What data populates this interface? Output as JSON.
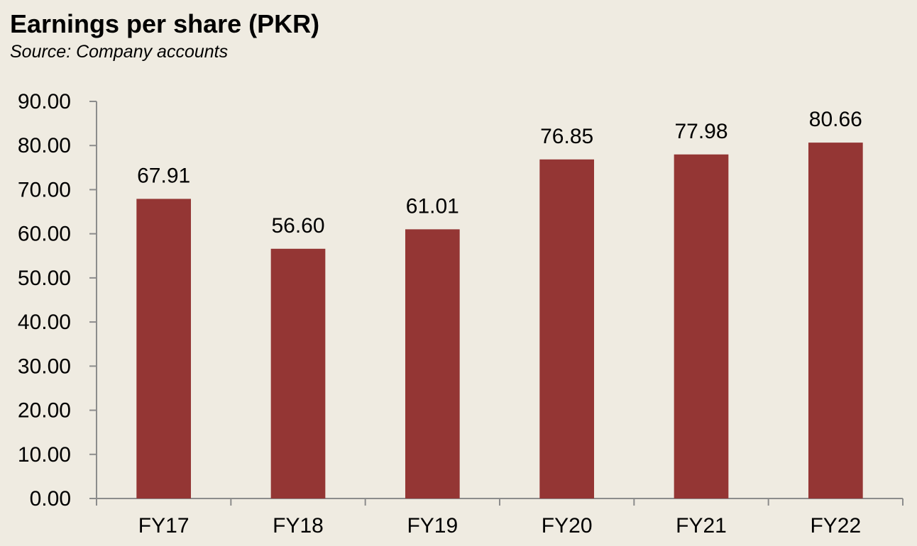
{
  "chart_data": {
    "type": "bar",
    "title": "Earnings per share (PKR)",
    "subtitle": "Source: Company accounts",
    "categories": [
      "FY17",
      "FY18",
      "FY19",
      "FY20",
      "FY21",
      "FY22"
    ],
    "values": [
      67.91,
      56.6,
      61.01,
      76.85,
      77.98,
      80.66
    ],
    "data_labels": [
      "67.91",
      "56.60",
      "61.01",
      "76.85",
      "77.98",
      "80.66"
    ],
    "y_ticks": [
      0,
      10,
      20,
      30,
      40,
      50,
      60,
      70,
      80,
      90
    ],
    "y_tick_labels": [
      "0.00",
      "10.00",
      "20.00",
      "30.00",
      "40.00",
      "50.00",
      "60.00",
      "70.00",
      "80.00",
      "90.00"
    ],
    "xlabel": "",
    "ylabel": "",
    "ylim": [
      0,
      90
    ],
    "grid": false,
    "legend": "none",
    "bar_color": "#943634"
  }
}
